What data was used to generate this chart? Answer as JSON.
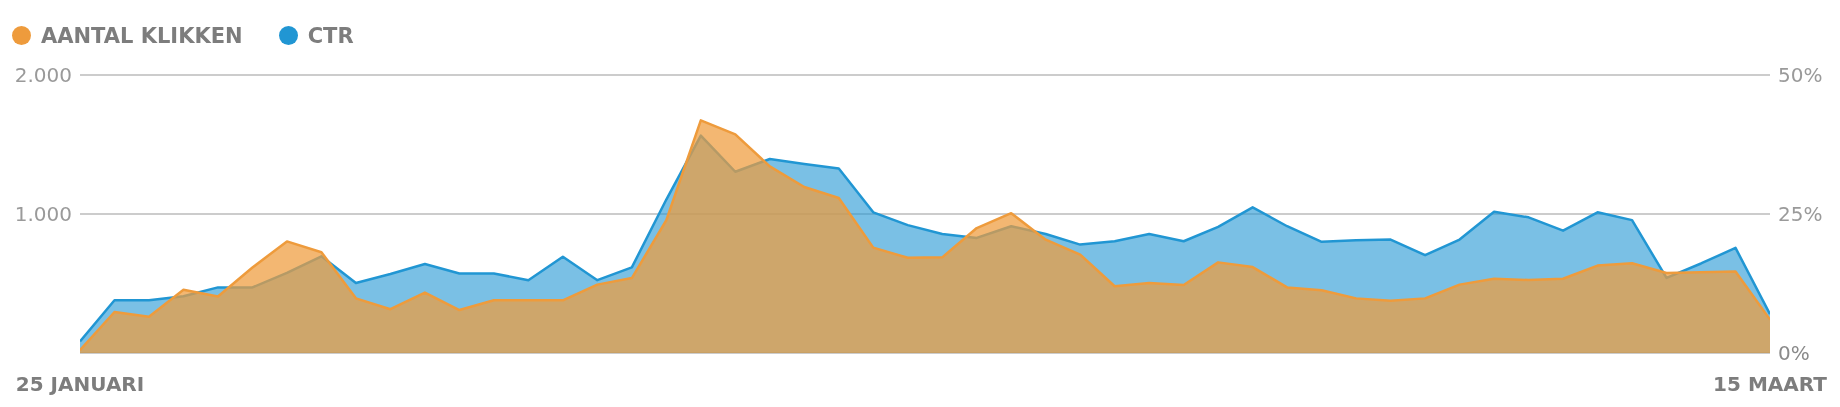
{
  "chart_data": {
    "type": "area",
    "categories": [
      "25 JANUARI",
      null,
      null,
      null,
      null,
      null,
      null,
      null,
      null,
      null,
      null,
      null,
      null,
      null,
      null,
      null,
      null,
      null,
      null,
      null,
      null,
      null,
      null,
      null,
      null,
      null,
      null,
      null,
      null,
      null,
      null,
      null,
      null,
      null,
      null,
      null,
      null,
      null,
      null,
      null,
      null,
      null,
      null,
      null,
      null,
      null,
      null,
      null,
      null,
      "15 MAART"
    ],
    "series": [
      {
        "name": "AANTAL KLIKKEN",
        "color": "#ee9b3c",
        "values": [
          20,
          295,
          261,
          455,
          407,
          615,
          803,
          725,
          393,
          315,
          435,
          309,
          379,
          379,
          379,
          492,
          539,
          955,
          1674,
          1573,
          1343,
          1194,
          1115,
          758,
          685,
          688,
          899,
          1006,
          815,
          708,
          480,
          503,
          489,
          652,
          618,
          472,
          452,
          393,
          376,
          393,
          492,
          534,
          525,
          534,
          629,
          646,
          576,
          581,
          587,
          240
        ]
      },
      {
        "name": "CTR",
        "color": "#2196d3",
        "axis": "y2",
        "values": [
          2.1,
          9.5,
          9.5,
          10.2,
          11.8,
          11.8,
          14.4,
          17.4,
          12.6,
          14.2,
          16.0,
          14.3,
          14.3,
          13.1,
          17.3,
          13.1,
          15.4,
          27.6,
          39.1,
          32.6,
          34.9,
          34.0,
          33.2,
          25.3,
          23.0,
          21.4,
          20.7,
          22.8,
          21.4,
          19.5,
          20.1,
          21.4,
          20.1,
          22.7,
          26.2,
          22.8,
          20.0,
          20.3,
          20.4,
          17.6,
          20.4,
          25.4,
          24.4,
          22.0,
          25.3,
          23.9,
          13.5,
          16.1,
          18.9,
          7
        ]
      }
    ],
    "ylim": [
      0,
      2000
    ],
    "yticks": [
      {
        "value": 0,
        "label": null
      },
      {
        "value": 1000,
        "label": "1.000"
      },
      {
        "value": 2000,
        "label": "2.000"
      }
    ],
    "y2lim": [
      0,
      50
    ],
    "y2ticks": [
      {
        "value": 0,
        "label": "0%"
      },
      {
        "value": 25,
        "label": "25%"
      },
      {
        "value": 50,
        "label": "50%"
      }
    ],
    "grid": "y",
    "legend": "top left"
  }
}
